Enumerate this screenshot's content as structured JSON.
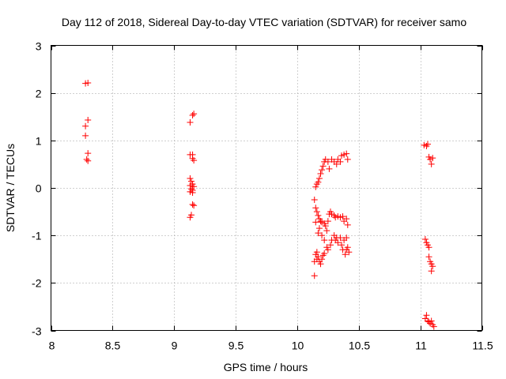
{
  "chart_data": {
    "type": "scatter",
    "title": "Day 112 of 2018, Sidereal Day-to-day VTEC variation (SDTVAR) for receiver samo",
    "xlabel": "GPS time / hours",
    "ylabel": "SDTVAR / TECUs",
    "xlim": [
      8,
      11.5
    ],
    "ylim": [
      -3,
      3
    ],
    "xticks": [
      8,
      8.5,
      9,
      9.5,
      10,
      10.5,
      11,
      11.5
    ],
    "yticks": [
      -3,
      -2,
      -1,
      0,
      1,
      2,
      3
    ],
    "xtick_labels": [
      "8",
      "8.5",
      "9",
      "9.5",
      "10",
      "10.5",
      "11",
      "11.5"
    ],
    "ytick_labels": [
      "-3",
      "-2",
      "-1",
      "0",
      "1",
      "2",
      "3"
    ],
    "grid": true,
    "marker": "+",
    "color": "#ff0000",
    "series": [
      {
        "name": "samo",
        "points": [
          [
            8.28,
            2.2
          ],
          [
            8.3,
            2.21
          ],
          [
            8.28,
            1.3
          ],
          [
            8.3,
            1.43
          ],
          [
            8.28,
            1.1
          ],
          [
            8.3,
            0.73
          ],
          [
            8.29,
            0.6
          ],
          [
            8.3,
            0.57
          ],
          [
            9.13,
            1.38
          ],
          [
            9.15,
            1.53
          ],
          [
            9.16,
            1.56
          ],
          [
            9.13,
            0.7
          ],
          [
            9.15,
            0.7
          ],
          [
            9.15,
            0.62
          ],
          [
            9.16,
            0.58
          ],
          [
            9.13,
            0.2
          ],
          [
            9.14,
            0.14
          ],
          [
            9.13,
            0.05
          ],
          [
            9.15,
            0.08
          ],
          [
            9.16,
            0.03
          ],
          [
            9.14,
            -0.02
          ],
          [
            9.15,
            -0.05
          ],
          [
            9.13,
            -0.08
          ],
          [
            9.15,
            -0.1
          ],
          [
            9.16,
            -0.37
          ],
          [
            9.15,
            -0.35
          ],
          [
            9.14,
            -0.57
          ],
          [
            9.13,
            -0.62
          ],
          [
            10.15,
            0.02
          ],
          [
            10.16,
            0.08
          ],
          [
            10.17,
            0.12
          ],
          [
            10.18,
            0.2
          ],
          [
            10.19,
            0.3
          ],
          [
            10.2,
            0.38
          ],
          [
            10.21,
            0.46
          ],
          [
            10.22,
            0.55
          ],
          [
            10.23,
            0.6
          ],
          [
            10.25,
            0.55
          ],
          [
            10.26,
            0.4
          ],
          [
            10.28,
            0.6
          ],
          [
            10.3,
            0.55
          ],
          [
            10.32,
            0.5
          ],
          [
            10.33,
            0.6
          ],
          [
            10.35,
            0.55
          ],
          [
            10.36,
            0.68
          ],
          [
            10.38,
            0.7
          ],
          [
            10.4,
            0.72
          ],
          [
            10.41,
            0.6
          ],
          [
            10.14,
            -0.25
          ],
          [
            10.15,
            -0.42
          ],
          [
            10.16,
            -0.5
          ],
          [
            10.17,
            -0.58
          ],
          [
            10.18,
            -0.65
          ],
          [
            10.19,
            -0.7
          ],
          [
            10.2,
            -0.72
          ],
          [
            10.22,
            -0.75
          ],
          [
            10.23,
            -0.8
          ],
          [
            10.24,
            -0.9
          ],
          [
            10.25,
            -0.7
          ],
          [
            10.26,
            -0.55
          ],
          [
            10.27,
            -0.5
          ],
          [
            10.28,
            -0.55
          ],
          [
            10.3,
            -0.58
          ],
          [
            10.31,
            -0.62
          ],
          [
            10.33,
            -0.6
          ],
          [
            10.35,
            -0.62
          ],
          [
            10.37,
            -0.6
          ],
          [
            10.38,
            -0.7
          ],
          [
            10.4,
            -0.65
          ],
          [
            10.41,
            -0.78
          ],
          [
            10.15,
            -0.72
          ],
          [
            10.17,
            -0.95
          ],
          [
            10.18,
            -0.85
          ],
          [
            10.2,
            -1.0
          ],
          [
            10.22,
            -1.1
          ],
          [
            10.24,
            -1.25
          ],
          [
            10.25,
            -1.3
          ],
          [
            10.27,
            -1.2
          ],
          [
            10.28,
            -1.1
          ],
          [
            10.3,
            -1.0
          ],
          [
            10.31,
            -1.1
          ],
          [
            10.32,
            -1.05
          ],
          [
            10.33,
            -1.15
          ],
          [
            10.35,
            -1.05
          ],
          [
            10.36,
            -1.2
          ],
          [
            10.37,
            -1.3
          ],
          [
            10.38,
            -1.1
          ],
          [
            10.4,
            -1.05
          ],
          [
            10.41,
            -1.25
          ],
          [
            10.42,
            -1.35
          ],
          [
            10.15,
            -1.4
          ],
          [
            10.16,
            -1.5
          ],
          [
            10.17,
            -1.45
          ],
          [
            10.18,
            -1.55
          ],
          [
            10.19,
            -1.6
          ],
          [
            10.2,
            -1.5
          ],
          [
            10.21,
            -1.42
          ],
          [
            10.22,
            -1.38
          ],
          [
            10.14,
            -1.55
          ],
          [
            10.16,
            -1.35
          ],
          [
            10.14,
            -1.85
          ],
          [
            10.4,
            -1.3
          ],
          [
            10.39,
            -1.4
          ],
          [
            11.03,
            0.9
          ],
          [
            11.05,
            0.88
          ],
          [
            11.06,
            0.92
          ],
          [
            11.07,
            0.65
          ],
          [
            11.08,
            0.6
          ],
          [
            11.09,
            0.5
          ],
          [
            11.1,
            0.63
          ],
          [
            11.04,
            -1.08
          ],
          [
            11.05,
            -1.15
          ],
          [
            11.06,
            -1.2
          ],
          [
            11.07,
            -1.25
          ],
          [
            11.07,
            -1.45
          ],
          [
            11.08,
            -1.55
          ],
          [
            11.09,
            -1.6
          ],
          [
            11.1,
            -1.65
          ],
          [
            11.09,
            -1.75
          ],
          [
            11.04,
            -2.75
          ],
          [
            11.05,
            -2.68
          ],
          [
            11.06,
            -2.8
          ],
          [
            11.07,
            -2.82
          ],
          [
            11.08,
            -2.85
          ],
          [
            11.09,
            -2.8
          ],
          [
            11.1,
            -2.88
          ],
          [
            11.11,
            -2.92
          ]
        ]
      }
    ]
  }
}
